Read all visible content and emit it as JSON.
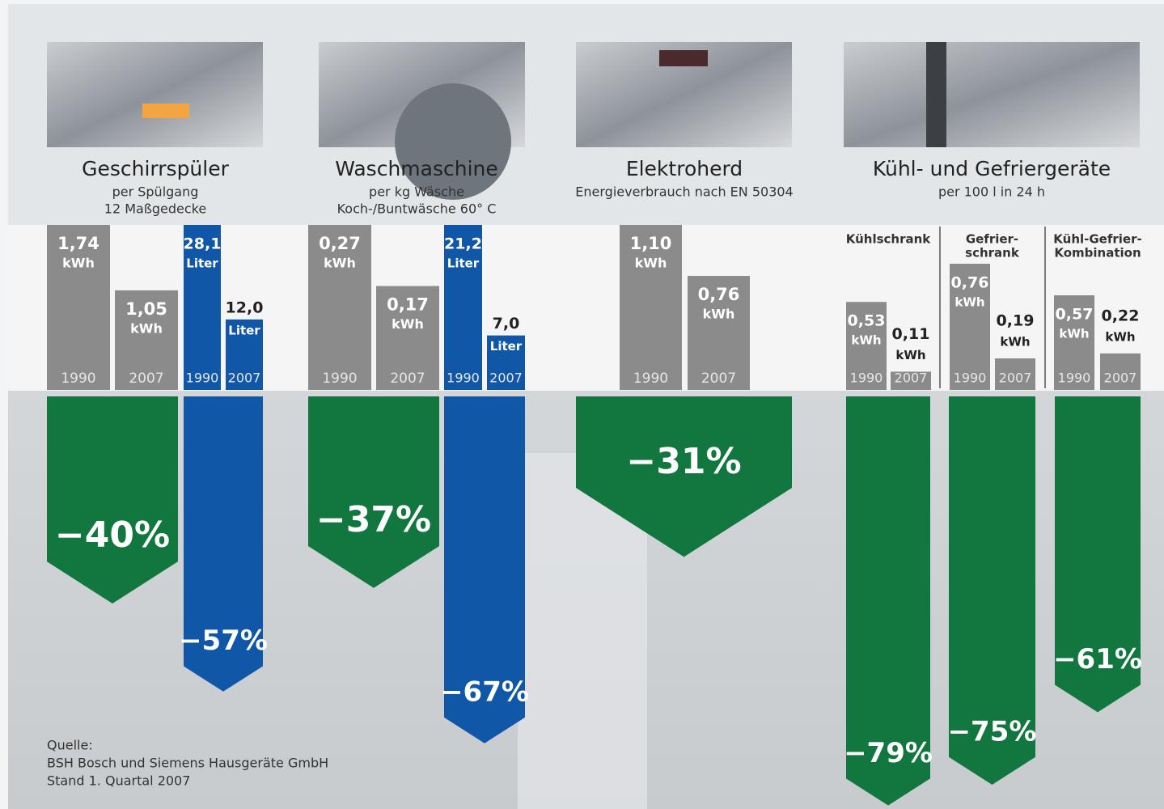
{
  "chart_data": {
    "type": "bar",
    "panels": [
      {
        "title": "Geschirrspüler",
        "subtitle": [
          "per Spülgang",
          "12 Maßgedecke"
        ],
        "groups": [
          {
            "unit": "kWh",
            "color": "#8b8b8b",
            "change_color": "#12773f",
            "categories": [
              "1990",
              "2007"
            ],
            "values": [
              1.74,
              1.05
            ],
            "value_labels": [
              "1,74",
              "1,05"
            ],
            "change": -40,
            "change_label": "−40%"
          },
          {
            "unit": "Liter",
            "color": "#1157a8",
            "change_color": "#1157a8",
            "categories": [
              "1990",
              "2007"
            ],
            "values": [
              28.1,
              12.0
            ],
            "value_labels": [
              "28,1",
              "12,0"
            ],
            "change": -57,
            "change_label": "−57%"
          }
        ]
      },
      {
        "title": "Waschmaschine",
        "subtitle": [
          "per kg Wäsche",
          "Koch-/Buntwäsche 60° C"
        ],
        "groups": [
          {
            "unit": "kWh",
            "color": "#8b8b8b",
            "change_color": "#12773f",
            "categories": [
              "1990",
              "2007"
            ],
            "values": [
              0.27,
              0.17
            ],
            "value_labels": [
              "0,27",
              "0,17"
            ],
            "change": -37,
            "change_label": "−37%"
          },
          {
            "unit": "Liter",
            "color": "#1157a8",
            "change_color": "#1157a8",
            "categories": [
              "1990",
              "2007"
            ],
            "values": [
              21.2,
              7.0
            ],
            "value_labels": [
              "21,2",
              "7,0"
            ],
            "change": -67,
            "change_label": "−67%"
          }
        ]
      },
      {
        "title": "Elektroherd",
        "subtitle": [
          "Energieverbrauch nach EN 50304"
        ],
        "groups": [
          {
            "unit": "kWh",
            "color": "#8b8b8b",
            "change_color": "#12773f",
            "categories": [
              "1990",
              "2007"
            ],
            "values": [
              1.1,
              0.76
            ],
            "value_labels": [
              "1,10",
              "0,76"
            ],
            "change": -31,
            "change_label": "−31%"
          }
        ]
      },
      {
        "title": "Kühl- und Gefriergeräte",
        "subtitle": [
          "per 100 l in 24 h"
        ],
        "groups": [
          {
            "label": [
              "Kühlschrank"
            ],
            "unit": "kWh",
            "color": "#8b8b8b",
            "change_color": "#12773f",
            "categories": [
              "1990",
              "2007"
            ],
            "values": [
              0.53,
              0.11
            ],
            "value_labels": [
              "0,53",
              "0,11"
            ],
            "change": -79,
            "change_label": "−79%"
          },
          {
            "label": [
              "Gefrier-",
              "schrank"
            ],
            "unit": "kWh",
            "color": "#8b8b8b",
            "change_color": "#12773f",
            "categories": [
              "1990",
              "2007"
            ],
            "values": [
              0.76,
              0.19
            ],
            "value_labels": [
              "0,76",
              "0,19"
            ],
            "change": -75,
            "change_label": "−75%"
          },
          {
            "label": [
              "Kühl-Gefrier-",
              "Kombination"
            ],
            "unit": "kWh",
            "color": "#8b8b8b",
            "change_color": "#12773f",
            "categories": [
              "1990",
              "2007"
            ],
            "values": [
              0.57,
              0.22
            ],
            "value_labels": [
              "0,57",
              "0,22"
            ],
            "change": -61,
            "change_label": "−61%"
          }
        ]
      }
    ],
    "source": [
      "Quelle:",
      "BSH Bosch und Siemens Hausgeräte GmbH",
      "Stand 1. Quartal 2007"
    ]
  }
}
